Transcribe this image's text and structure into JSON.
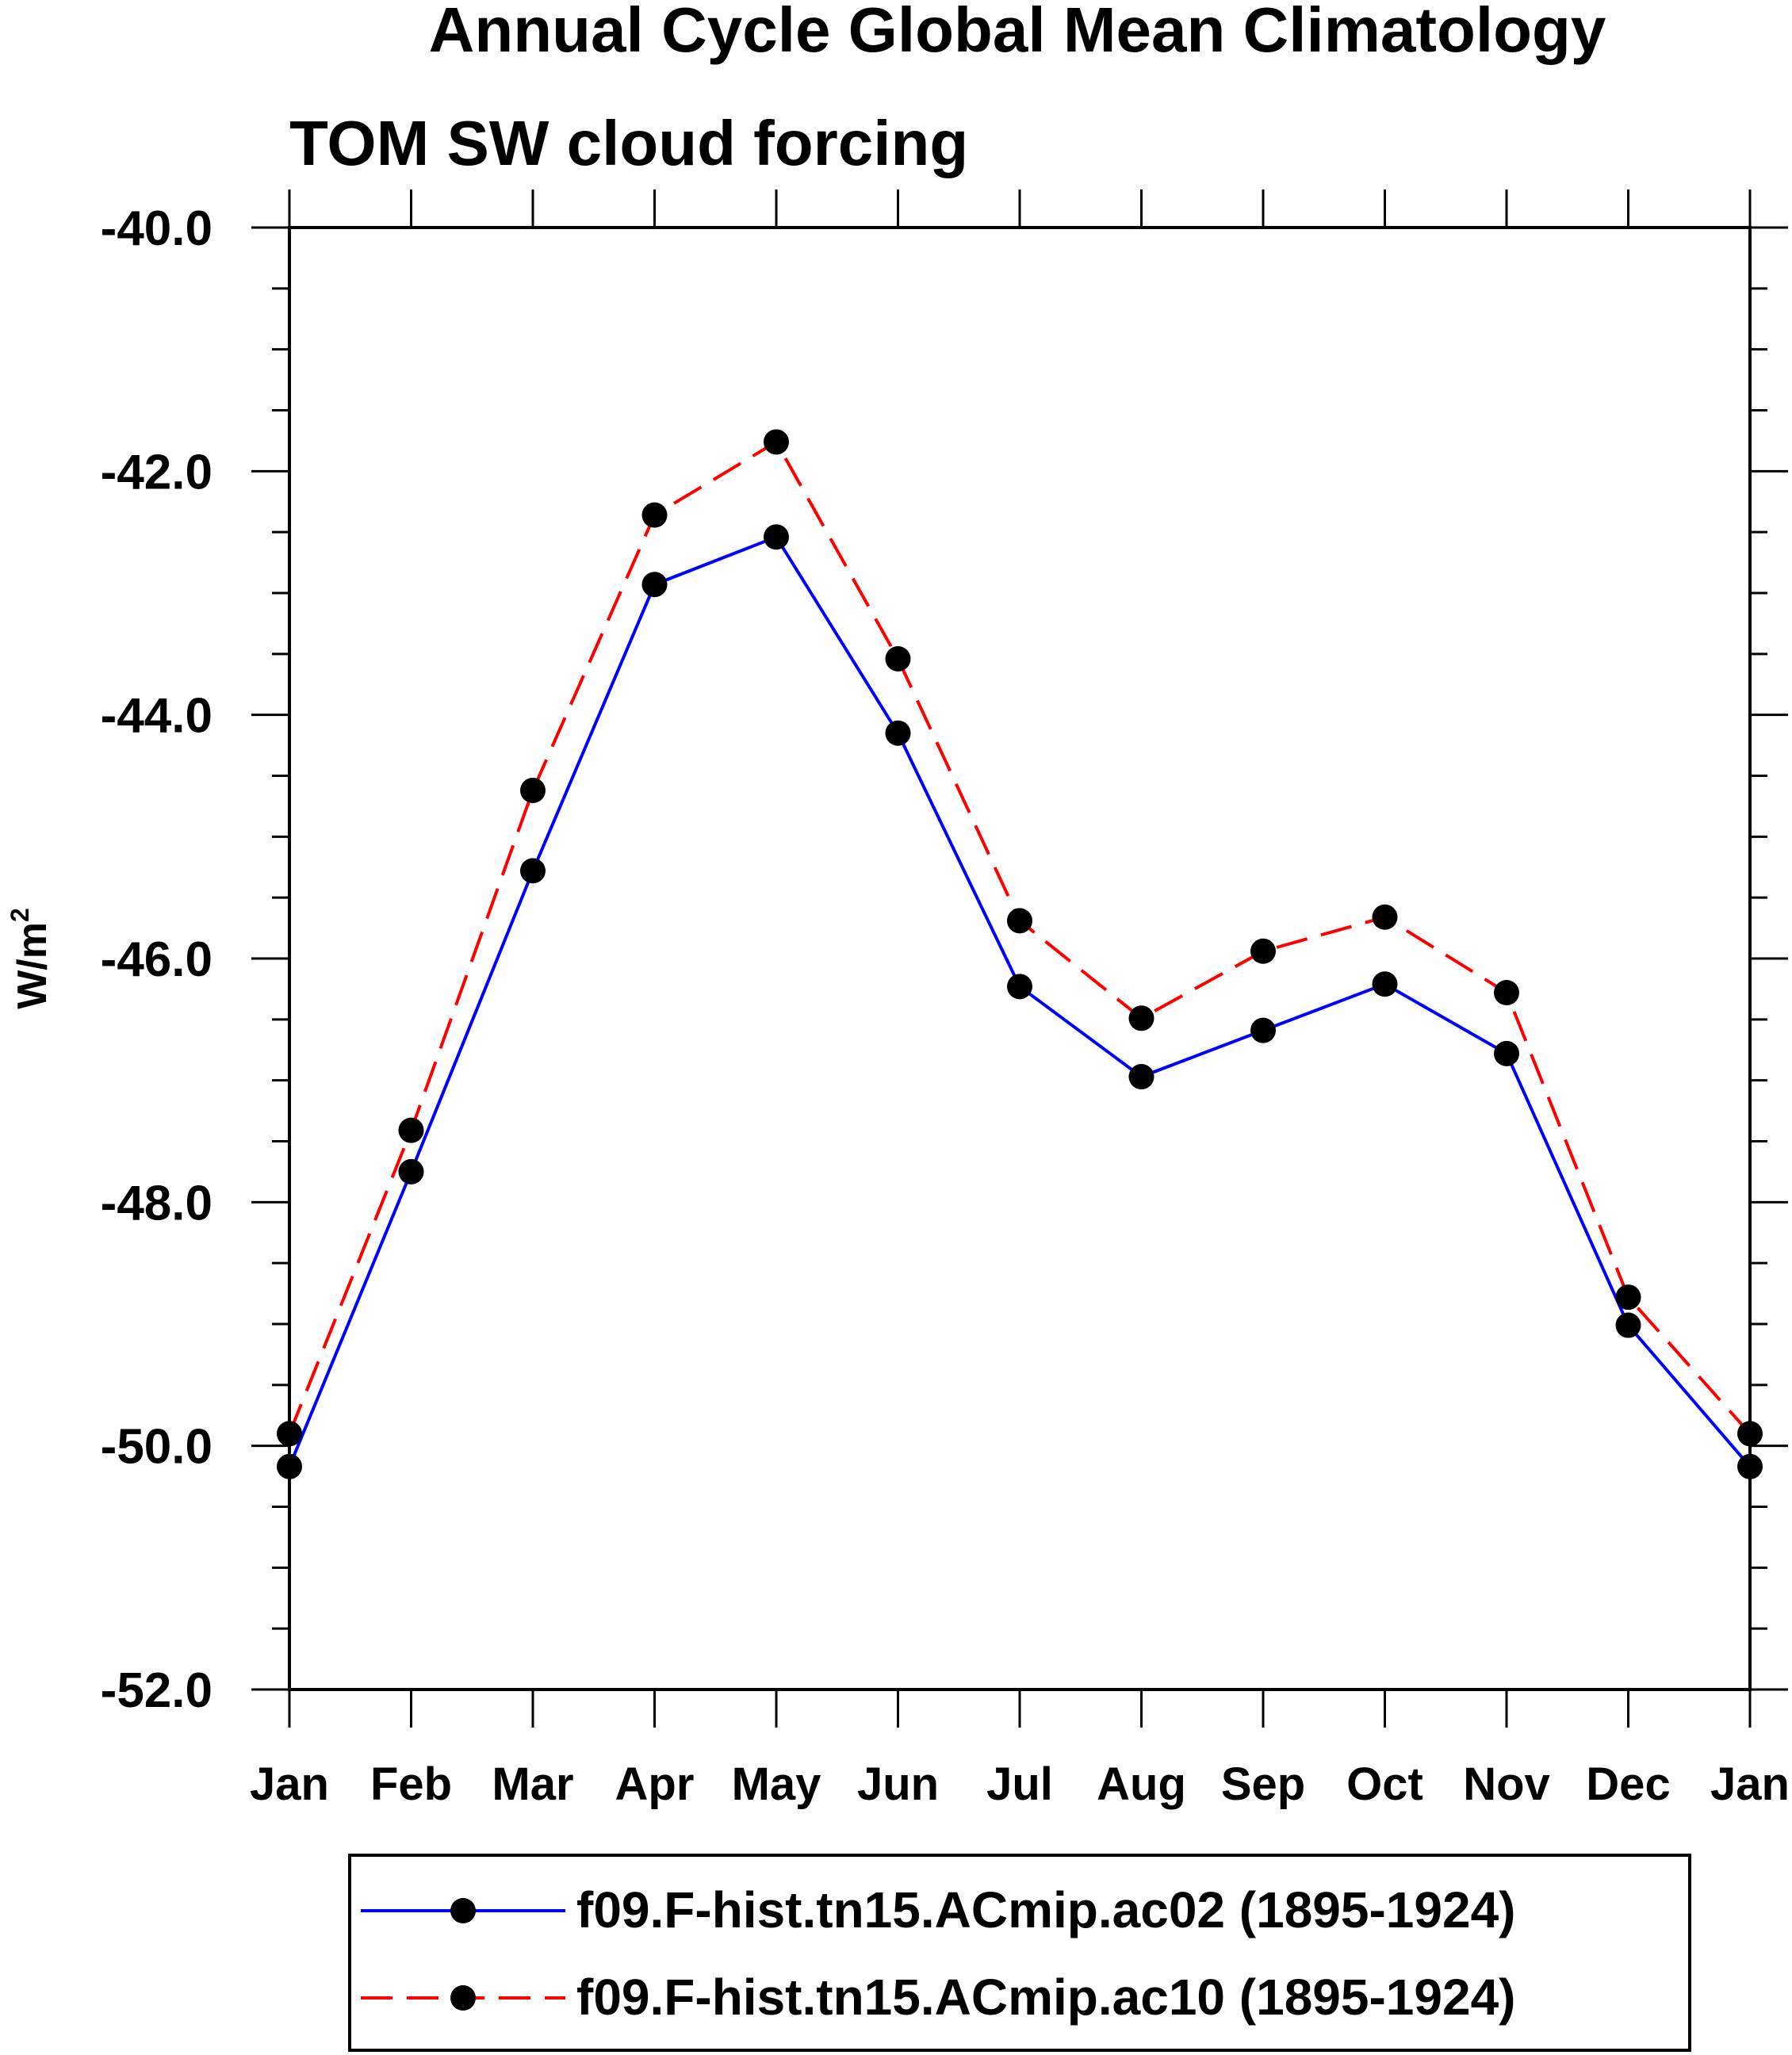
{
  "colors": {
    "series1": "#0000ff",
    "series2": "#ff0000",
    "marker": "#000000",
    "axis": "#000000"
  },
  "chart_data": {
    "type": "line",
    "title": "Annual Cycle Global Mean Climatology",
    "subtitle": "TOM SW cloud forcing",
    "xlabel": "",
    "ylabel_base": "W/m",
    "ylabel_superscript": "2",
    "categories": [
      "Jan",
      "Feb",
      "Mar",
      "Apr",
      "May",
      "Jun",
      "Jul",
      "Aug",
      "Sep",
      "Oct",
      "Nov",
      "Dec",
      "Jan"
    ],
    "yticks": [
      "-40.0",
      "-42.0",
      "-44.0",
      "-46.0",
      "-48.0",
      "-50.0",
      "-52.0"
    ],
    "ytick_values": [
      -40,
      -42,
      -44,
      -46,
      -48,
      -50,
      -52
    ],
    "ylim": [
      -52,
      -40
    ],
    "grid": false,
    "legend_position": "bottom",
    "series": [
      {
        "name": "f09.F-hist.tn15.ACmip.ac02 (1895-1924)",
        "line_style": "solid",
        "color": "#0000ff",
        "values": [
          -50.17,
          -47.75,
          -45.28,
          -42.93,
          -42.54,
          -44.15,
          -46.23,
          -46.97,
          -46.59,
          -46.21,
          -46.78,
          -49.01,
          -50.17
        ]
      },
      {
        "name": "f09.F-hist.tn15.ACmip.ac10 (1895-1924)",
        "line_style": "dashed",
        "color": "#ff0000",
        "values": [
          -49.9,
          -47.41,
          -44.62,
          -42.36,
          -41.76,
          -43.54,
          -45.69,
          -46.49,
          -45.94,
          -45.66,
          -46.28,
          -48.78,
          -49.9
        ]
      }
    ]
  }
}
